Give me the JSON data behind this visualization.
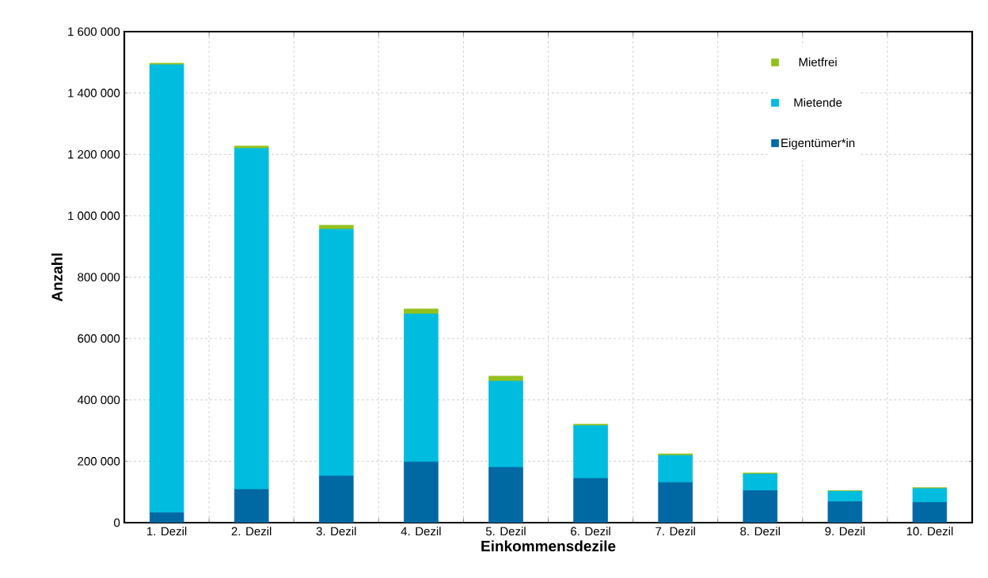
{
  "chart_data": {
    "type": "bar",
    "stacked": true,
    "xlabel": "Einkommensdezile",
    "ylabel": "Anzahl",
    "categories": [
      "1. Dezil",
      "2. Dezil",
      "3. Dezil",
      "4. Dezil",
      "5. Dezil",
      "6. Dezil",
      "7. Dezil",
      "8. Dezil",
      "9. Dezil",
      "10. Dezil"
    ],
    "series": [
      {
        "name": "Eigentümer*in",
        "color": "#0069a3",
        "values": [
          32000,
          108000,
          152000,
          198000,
          180000,
          144000,
          131000,
          104000,
          68000,
          66000
        ]
      },
      {
        "name": "Mietende",
        "color": "#00bde0",
        "values": [
          1460000,
          1111000,
          804000,
          482000,
          281000,
          172000,
          88000,
          54000,
          34000,
          45000
        ]
      },
      {
        "name": "Mietfrei",
        "color": "#95c11f",
        "values": [
          5000,
          8000,
          13000,
          16000,
          16000,
          5000,
          5000,
          4000,
          2000,
          3000
        ]
      }
    ],
    "ylim": [
      0,
      1600000
    ],
    "yticks": [
      0,
      {
        "value": 200000,
        "label": "200 000"
      },
      {
        "value": 400000,
        "label": "400 000"
      },
      {
        "value": 600000,
        "label": "600 000"
      },
      {
        "value": 800000,
        "label": "800 000"
      },
      {
        "value": 1000000,
        "label": "1 000 000"
      },
      {
        "value": 1200000,
        "label": "1 200 000"
      },
      {
        "value": 1400000,
        "label": "1 400 000"
      },
      {
        "value": 1600000,
        "label": "1 600 000"
      }
    ],
    "grid": true,
    "legend": "top right"
  }
}
